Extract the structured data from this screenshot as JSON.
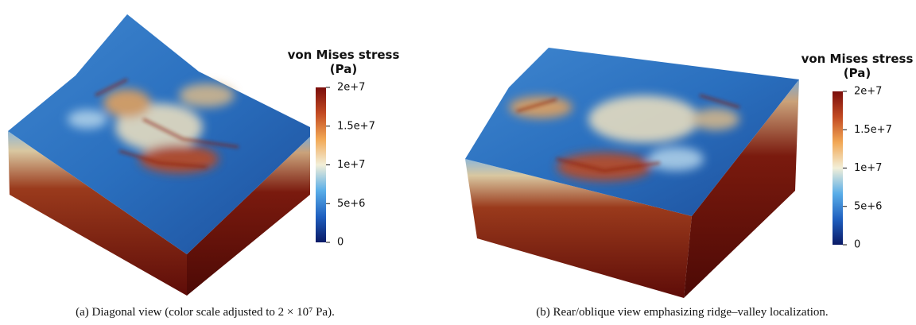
{
  "panels": [
    {
      "colorbar": {
        "title": "von Mises stress",
        "unit": "(Pa)",
        "range": [
          0,
          20000000
        ],
        "ticks": [
          0,
          {
            "value": 5000000,
            "label": "5e+6"
          },
          {
            "value": 10000000,
            "label": "1e+7"
          },
          {
            "value": 15000000,
            "label": "1.5e+7"
          },
          {
            "value": 20000000,
            "label": "2e+7"
          }
        ],
        "colormap": [
          "#0a1a66",
          "#1f5fbf",
          "#5aaee8",
          "#f2efd8",
          "#f2a855",
          "#c24a22",
          "#7a0d0b"
        ]
      },
      "caption": "(a) Diagonal view (color scale adjusted to 2 × 10⁷ Pa)."
    },
    {
      "colorbar": {
        "title": "von Mises stress",
        "unit": "(Pa)",
        "range": [
          0,
          20000000
        ],
        "ticks": [
          0,
          {
            "value": 5000000,
            "label": "5e+6"
          },
          {
            "value": 10000000,
            "label": "1e+7"
          },
          {
            "value": 15000000,
            "label": "1.5e+7"
          },
          {
            "value": 20000000,
            "label": "2e+7"
          }
        ],
        "colormap": [
          "#0a1a66",
          "#1f5fbf",
          "#5aaee8",
          "#f2efd8",
          "#f2a855",
          "#c24a22",
          "#7a0d0b"
        ]
      },
      "caption": "(b) Rear/oblique view emphasizing ridge–valley localization."
    }
  ]
}
